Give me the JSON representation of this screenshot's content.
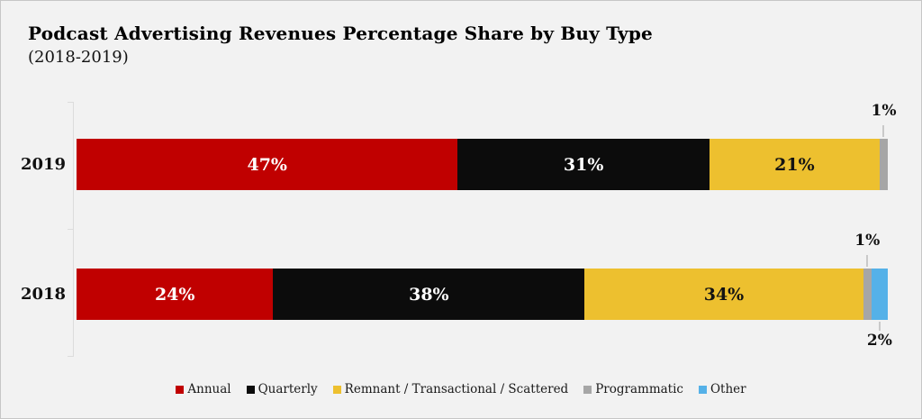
{
  "chart_data": {
    "type": "bar",
    "variant": "horizontal-stacked",
    "title": "Podcast Advertising Revenues Percentage Share by Buy Type",
    "subtitle": "(2018-2019)",
    "categories": [
      "2019",
      "2018"
    ],
    "series": [
      {
        "name": "Annual",
        "color": "#c00000",
        "text_color": "#ffffff",
        "values": [
          47,
          24
        ],
        "labels": [
          "47%",
          "24%"
        ],
        "placement": [
          "inside",
          "inside"
        ]
      },
      {
        "name": "Quarterly",
        "color": "#0c0c0c",
        "text_color": "#ffffff",
        "values": [
          31,
          38
        ],
        "labels": [
          "31%",
          "38%"
        ],
        "placement": [
          "inside",
          "inside"
        ]
      },
      {
        "name": "Remnant / Transactional / Scattered",
        "color": "#edc02f",
        "text_color": "#131313",
        "values": [
          21,
          34
        ],
        "labels": [
          "21%",
          "34%"
        ],
        "placement": [
          "inside",
          "inside"
        ]
      },
      {
        "name": "Programmatic",
        "color": "#a6a6a6",
        "text_color": "#131313",
        "values": [
          1,
          1
        ],
        "labels": [
          "1%",
          "1%"
        ],
        "placement": [
          "above",
          "above"
        ]
      },
      {
        "name": "Other",
        "color": "#55b1e8",
        "text_color": "#131313",
        "values": [
          0,
          2
        ],
        "labels": [
          "",
          "2%"
        ],
        "placement": [
          "none",
          "below"
        ]
      }
    ],
    "layout_hints": {
      "background": "#f2f2f2",
      "axis_color": "#dcdcdc",
      "legend_position": "bottom",
      "grid": false,
      "x_range": [
        0,
        100
      ]
    }
  }
}
